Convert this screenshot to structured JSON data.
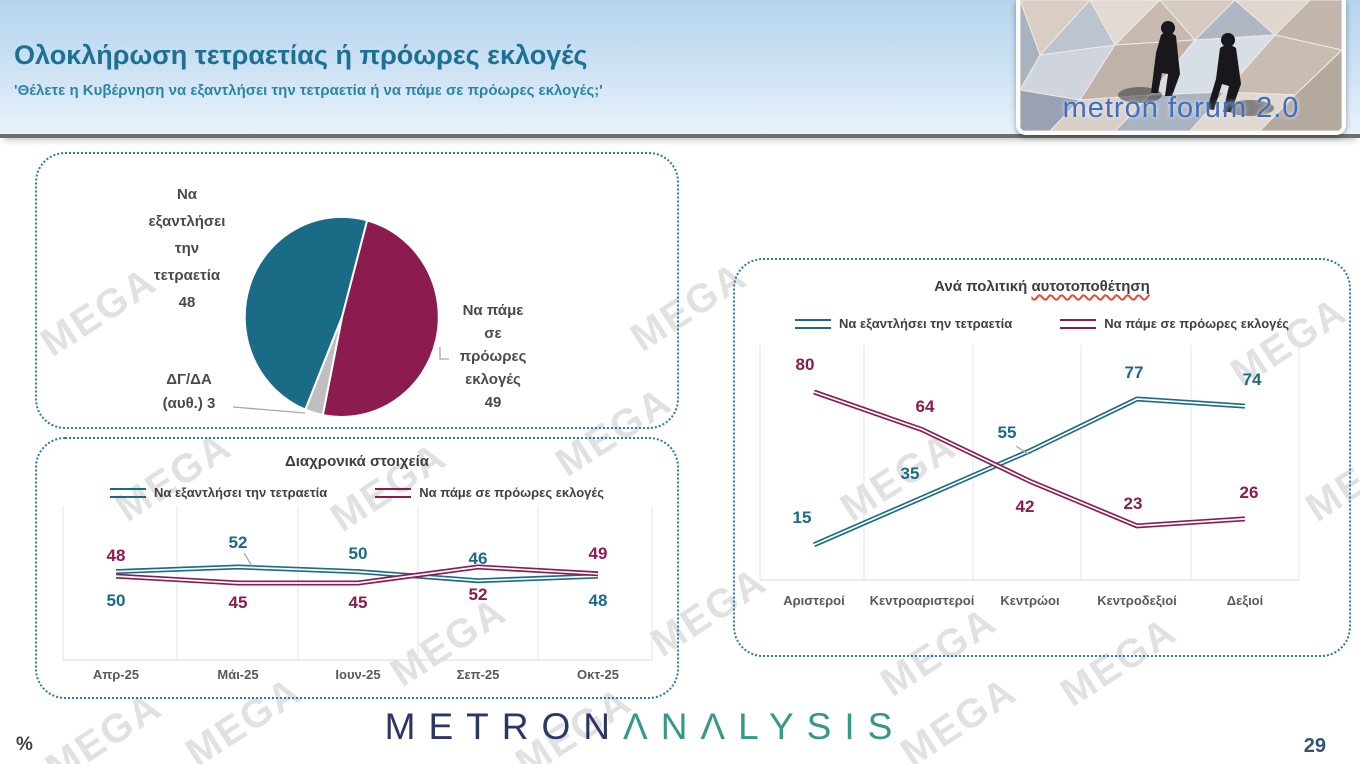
{
  "header": {
    "title": "Ολοκλήρωση τετραετίας ή πρόωρες εκλογές",
    "subtitle": "'Θέλετε η Κυβέρνηση να εξαντλήσει την τετραετία ή να πάμε σε πρόωρες εκλογές;'",
    "logo_text": "metron forum 2.0"
  },
  "watermark": {
    "label": "MEGA"
  },
  "colors": {
    "teal": "#1a6b86",
    "crimson": "#8c1b4f",
    "gray": "#bfbfbf"
  },
  "footer": {
    "brand_part1": "METRON",
    "brand_part2": "ΛNΛLYSIS",
    "unit_label": "%",
    "page_number": "29"
  },
  "chart_data": [
    {
      "id": "choice-pie",
      "type": "pie",
      "slices": [
        {
          "label": "Να εξαντλήσει την τετραετία",
          "value": 48,
          "color_key": "teal",
          "label_lines": [
            "Να",
            "εξαντλήσει",
            "την",
            "τετραετία",
            "48"
          ]
        },
        {
          "label": "Να πάμε σε πρόωρες εκλογές",
          "value": 49,
          "color_key": "crimson",
          "label_lines": [
            "Να πάμε",
            "σε",
            "πρόωρες",
            "εκλογές",
            "49"
          ]
        },
        {
          "label": "ΔΓ/ΔΑ (αυθ.)",
          "value": 3,
          "color_key": "gray",
          "label_lines": [
            "ΔΓ/ΔΑ",
            "(αυθ.) 3"
          ]
        }
      ]
    },
    {
      "id": "trend-lines",
      "type": "line",
      "title": "Διαχρονικά στοιχεία",
      "categories": [
        "Απρ-25",
        "Μάι-25",
        "Ιουν-25",
        "Σεπ-25",
        "Οκτ-25"
      ],
      "series": [
        {
          "name": "Να εξαντλήσει την τετραετία",
          "color_key": "teal",
          "values": [
            50,
            52,
            50,
            46,
            48
          ]
        },
        {
          "name": "Να πάμε σε πρόωρες εκλογές",
          "color_key": "crimson",
          "values": [
            48,
            45,
            45,
            52,
            49
          ]
        }
      ],
      "legend_position": "top",
      "grid": "vertical"
    },
    {
      "id": "political-self-placement",
      "type": "line",
      "title_prefix": "Ανά πολιτική ",
      "title_underlined": "αυτοτοποθέτηση",
      "categories": [
        "Αριστεροί",
        "Κεντροαριστεροί",
        "Κεντρώοι",
        "Κεντροδεξιοί",
        "Δεξιοί"
      ],
      "series": [
        {
          "name": "Να εξαντλήσει την τετραετία",
          "color_key": "teal",
          "values": [
            15,
            35,
            55,
            77,
            74
          ]
        },
        {
          "name": "Να πάμε σε πρόωρες εκλογές",
          "color_key": "crimson",
          "values": [
            80,
            64,
            42,
            23,
            26
          ]
        }
      ],
      "legend_position": "top",
      "grid": "vertical",
      "ylim": [
        0,
        100
      ]
    }
  ]
}
